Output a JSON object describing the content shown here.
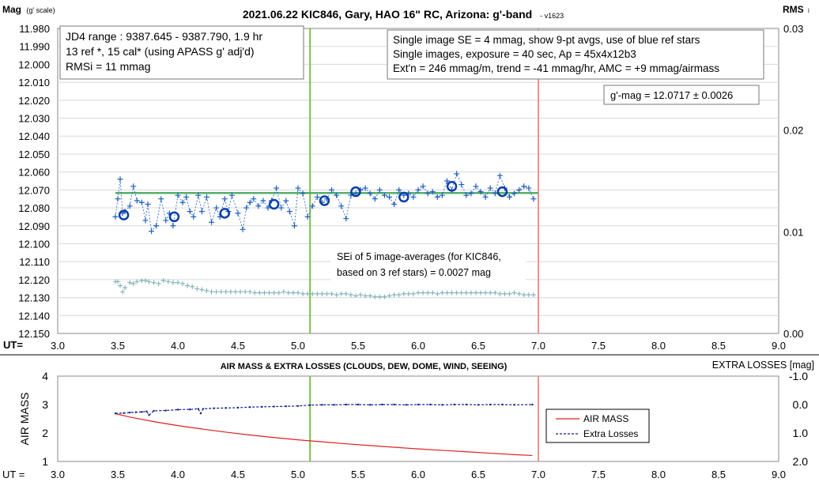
{
  "colors": {
    "marker": "#1f5fbf",
    "avg_circle": "#0a3ea8",
    "cal": "#7fb0b8",
    "trend": "#55b06a",
    "vline_green": "#7ac043",
    "vline_red": "#f09090",
    "airmass": "#e02020",
    "losses": "#10208c"
  },
  "chart_data": [
    {
      "type": "scatter",
      "title": "2021.06.22 KIC846, Gary, HAO 16\" RC, Arizona: g'-band",
      "title_suffix": "- v1623",
      "ylabel": "Mag",
      "ylabel_unit": "(g' scale)",
      "y2label": "RMS",
      "y2label_sub": "i",
      "xlabel": "UT=",
      "xlim": [
        3.0,
        9.0
      ],
      "ylim": [
        11.98,
        12.15
      ],
      "y_reversed": true,
      "y2lim": [
        0.0,
        0.03
      ],
      "x_ticks": [
        "3.0",
        "3.5",
        "4.0",
        "4.5",
        "5.0",
        "5.5",
        "6.0",
        "6.5",
        "7.0",
        "7.5",
        "8.0",
        "8.5",
        "9.0"
      ],
      "y_ticks": [
        "11.980",
        "11.990",
        "12.000",
        "12.010",
        "12.020",
        "12.030",
        "12.040",
        "12.050",
        "12.060",
        "12.070",
        "12.080",
        "12.090",
        "12.100",
        "12.110",
        "12.120",
        "12.130",
        "12.140",
        "12.150"
      ],
      "y2_ticks": [
        "0.03",
        "0.02",
        "0.01",
        "0.00"
      ],
      "grid": true,
      "vlines": [
        5.1,
        7.0
      ],
      "trend_line": {
        "x": [
          3.48,
          7.0
        ],
        "y": 12.0717
      },
      "series": [
        {
          "marker": "plus",
          "x": [
            3.48,
            3.5,
            3.52,
            3.54,
            3.56,
            3.6,
            3.63,
            3.66,
            3.7,
            3.73,
            3.75,
            3.78,
            3.82,
            3.86,
            3.9,
            3.93,
            3.96,
            4.0,
            4.04,
            4.07,
            4.1,
            4.13,
            4.17,
            4.2,
            4.24,
            4.28,
            4.32,
            4.35,
            4.39,
            4.42,
            4.45,
            4.5,
            4.54,
            4.57,
            4.6,
            4.63,
            4.67,
            4.71,
            4.75,
            4.78,
            4.82,
            4.86,
            4.9,
            4.93,
            4.97,
            5.0,
            5.04,
            5.08,
            5.12,
            5.16,
            5.2,
            5.24,
            5.28,
            5.32,
            5.36,
            5.4,
            5.44,
            5.48,
            5.52,
            5.56,
            5.6,
            5.64,
            5.68,
            5.72,
            5.76,
            5.8,
            5.84,
            5.88,
            5.92,
            5.96,
            6.0,
            6.04,
            6.08,
            6.12,
            6.16,
            6.2,
            6.24,
            6.28,
            6.32,
            6.36,
            6.4,
            6.44,
            6.48,
            6.52,
            6.56,
            6.6,
            6.64,
            6.68,
            6.72,
            6.76,
            6.8,
            6.84,
            6.88,
            6.92,
            6.96
          ],
          "y": [
            12.085,
            12.075,
            12.064,
            12.083,
            12.082,
            12.079,
            12.068,
            12.076,
            12.077,
            12.087,
            12.078,
            12.093,
            12.09,
            12.075,
            12.087,
            12.083,
            12.09,
            12.073,
            12.077,
            12.074,
            12.082,
            12.085,
            12.073,
            12.082,
            12.074,
            12.088,
            12.08,
            12.085,
            12.075,
            12.082,
            12.073,
            12.083,
            12.092,
            12.08,
            12.077,
            12.075,
            12.079,
            12.076,
            12.08,
            12.076,
            12.069,
            12.08,
            12.076,
            12.082,
            12.09,
            12.069,
            12.072,
            12.085,
            12.079,
            12.074,
            12.077,
            12.075,
            12.07,
            12.073,
            12.079,
            12.086,
            12.073,
            12.072,
            12.07,
            12.069,
            12.072,
            12.075,
            12.07,
            12.073,
            12.074,
            12.078,
            12.07,
            12.073,
            12.072,
            12.074,
            12.07,
            12.068,
            12.072,
            12.071,
            12.074,
            12.073,
            12.065,
            12.07,
            12.061,
            12.067,
            12.073,
            12.072,
            12.068,
            12.071,
            12.074,
            12.069,
            12.072,
            12.062,
            12.069,
            12.074,
            12.072,
            12.07,
            12.068,
            12.069,
            12.075
          ]
        },
        {
          "marker": "circle",
          "x": [
            3.55,
            3.97,
            4.39,
            4.8,
            5.22,
            5.48,
            5.88,
            6.28,
            6.7
          ],
          "y": [
            12.084,
            12.085,
            12.083,
            12.078,
            12.076,
            12.071,
            12.074,
            12.068,
            12.071
          ]
        },
        {
          "marker": "plus-small",
          "axis": "y2",
          "x": [
            3.48,
            3.5,
            3.52,
            3.54,
            3.56,
            3.6,
            3.63,
            3.66,
            3.7,
            3.73,
            3.76,
            3.8,
            3.84,
            3.88,
            3.92,
            3.96,
            4.0,
            4.04,
            4.08,
            4.12,
            4.16,
            4.2,
            4.24,
            4.28,
            4.32,
            4.36,
            4.4,
            4.44,
            4.48,
            4.52,
            4.56,
            4.6,
            4.64,
            4.68,
            4.72,
            4.76,
            4.8,
            4.84,
            4.88,
            4.92,
            4.96,
            5.0,
            5.04,
            5.08,
            5.12,
            5.16,
            5.2,
            5.24,
            5.28,
            5.32,
            5.36,
            5.4,
            5.44,
            5.48,
            5.52,
            5.56,
            5.6,
            5.64,
            5.68,
            5.72,
            5.76,
            5.8,
            5.84,
            5.88,
            5.92,
            5.96,
            6.0,
            6.04,
            6.08,
            6.12,
            6.16,
            6.2,
            6.24,
            6.28,
            6.32,
            6.36,
            6.4,
            6.44,
            6.48,
            6.52,
            6.56,
            6.6,
            6.64,
            6.68,
            6.72,
            6.76,
            6.8,
            6.84,
            6.88,
            6.92,
            6.96
          ],
          "y": [
            0.0051,
            0.0051,
            0.0047,
            0.0041,
            0.0045,
            0.005,
            0.0049,
            0.0051,
            0.0052,
            0.0052,
            0.0051,
            0.005,
            0.0049,
            0.0052,
            0.0051,
            0.005,
            0.005,
            0.0049,
            0.0047,
            0.0046,
            0.0044,
            0.0043,
            0.0042,
            0.0041,
            0.0041,
            0.0041,
            0.0041,
            0.0041,
            0.0041,
            0.0041,
            0.0041,
            0.0041,
            0.004,
            0.004,
            0.004,
            0.004,
            0.004,
            0.004,
            0.0041,
            0.004,
            0.004,
            0.004,
            0.0039,
            0.0039,
            0.0039,
            0.0039,
            0.0039,
            0.0039,
            0.0039,
            0.0038,
            0.0039,
            0.0039,
            0.0038,
            0.0037,
            0.0038,
            0.0037,
            0.0037,
            0.0036,
            0.0036,
            0.0036,
            0.0037,
            0.0038,
            0.0038,
            0.0039,
            0.0039,
            0.0039,
            0.004,
            0.004,
            0.004,
            0.004,
            0.0039,
            0.004,
            0.004,
            0.004,
            0.004,
            0.004,
            0.004,
            0.004,
            0.004,
            0.004,
            0.004,
            0.004,
            0.004,
            0.0039,
            0.0039,
            0.0039,
            0.004,
            0.0039,
            0.0038,
            0.0038,
            0.0038
          ]
        }
      ],
      "annotations": {
        "box1": [
          "JD4 range : 9387.645 - 9387.790,  1.9  hr",
          "13 ref *, 15 cal* (using APASS g' adj'd)",
          "RMSi = 11 mmag"
        ],
        "box2": [
          "Single image SE = 4 mmag, show  9-pt avgs, use of blue ref stars",
          "Single images, exposure = 40 sec, Ap = 45x4x12b3",
          "Ext'n = 246 mmag/m, trend = -41 mmag/hr, AMC = +9 mmag/airmass"
        ],
        "gmag": "g'-mag = 12.0717 ± 0.0026",
        "sei": [
          "SEi of 5 image-averages (for KIC846,",
          "based on 3 ref stars) = 0.0027 mag"
        ]
      }
    },
    {
      "type": "line",
      "title": "AIR MASS & EXTRA LOSSES (CLOUDS, DEW, DOME, WIND, SEEING)",
      "ylabel": "AIR MASS",
      "y2label": "EXTRA LOSSES [mag]",
      "xlabel": "UT =",
      "xlim": [
        3.0,
        9.0
      ],
      "ylim": [
        1,
        4
      ],
      "y2lim": [
        -1.0,
        2.0
      ],
      "y2_reversed": true,
      "x_ticks": [
        "3.0",
        "3.5",
        "4.0",
        "4.5",
        "5.0",
        "5.5",
        "6.0",
        "6.5",
        "7.0",
        "7.5",
        "8.0",
        "8.5",
        "9.0"
      ],
      "y_ticks": [
        "4",
        "3",
        "2",
        "1"
      ],
      "y2_ticks": [
        "-1.0",
        "0.0",
        "1.0",
        "2.0"
      ],
      "vlines": [
        5.1,
        7.0
      ],
      "series": [
        {
          "name": "AIR MASS",
          "x": [
            3.48,
            3.6,
            3.8,
            4.0,
            4.2,
            4.4,
            4.6,
            4.8,
            5.0,
            5.2,
            5.4,
            5.6,
            5.8,
            6.0,
            6.2,
            6.4,
            6.6,
            6.8,
            6.95
          ],
          "y": [
            2.68,
            2.56,
            2.4,
            2.26,
            2.14,
            2.03,
            1.93,
            1.84,
            1.76,
            1.69,
            1.62,
            1.56,
            1.5,
            1.44,
            1.39,
            1.34,
            1.29,
            1.24,
            1.21
          ]
        },
        {
          "name": "Extra Losses",
          "x": [
            3.48,
            3.55,
            3.6,
            3.65,
            3.7,
            3.74,
            3.76,
            3.8,
            3.9,
            4.0,
            4.1,
            4.17,
            4.19,
            4.21,
            4.3,
            4.4,
            4.5,
            4.6,
            4.7,
            4.8,
            4.9,
            5.0,
            5.1,
            5.2,
            5.3,
            5.4,
            5.5,
            5.6,
            5.7,
            5.8,
            5.9,
            6.0,
            6.1,
            6.2,
            6.3,
            6.4,
            6.5,
            6.6,
            6.7,
            6.8,
            6.95
          ],
          "y": [
            0.31,
            0.3,
            0.28,
            0.27,
            0.26,
            0.24,
            0.37,
            0.22,
            0.21,
            0.18,
            0.17,
            0.15,
            0.31,
            0.15,
            0.13,
            0.12,
            0.11,
            0.09,
            0.08,
            0.07,
            0.06,
            0.05,
            0.02,
            0.01,
            0.01,
            0.0,
            0.0,
            0.01,
            0.0,
            0.0,
            0.01,
            0.0,
            0.0,
            0.01,
            0.0,
            0.0,
            0.01,
            0.0,
            0.0,
            0.01,
            0.0
          ]
        }
      ],
      "legend": "center-right"
    }
  ]
}
